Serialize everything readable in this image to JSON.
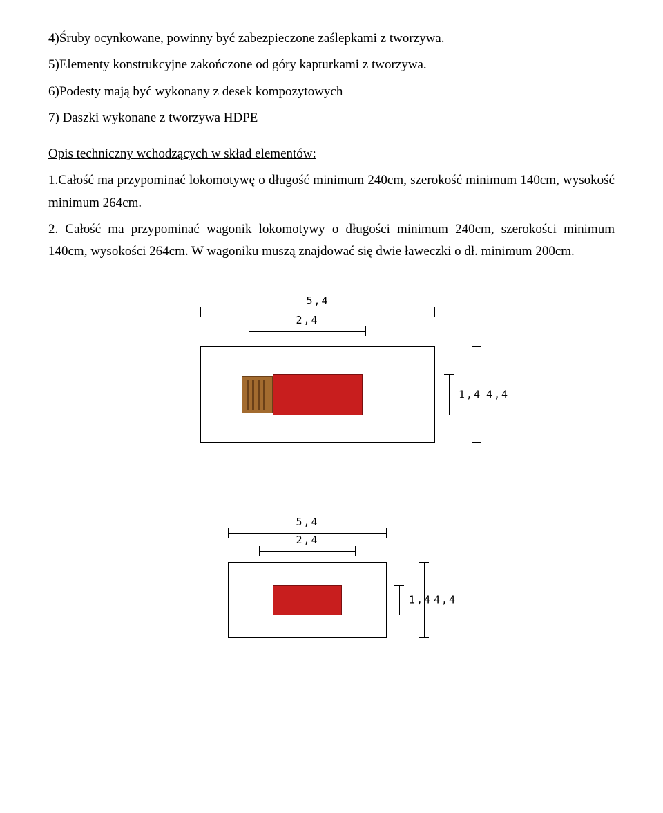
{
  "text": {
    "p4": "4)Śruby ocynkowane, powinny być zabezpieczone zaślepkami z tworzywa.",
    "p5": "5)Elementy konstrukcyjne zakończone od góry kapturkami z tworzywa.",
    "p6": "6)Podesty mają być wykonany z desek kompozytowych",
    "p7": "7) Daszki wykonane z tworzywa HDPE",
    "heading": "Opis techniczny wchodzących w skład elementów:",
    "item1": "1.Całość ma przypominać lokomotywę o długość minimum 240cm, szerokość minimum 140cm, wysokość minimum 264cm.",
    "item2": "2. Całość ma przypominać wagonik lokomotywy o długości minimum 240cm, szerokości minimum 140cm, wysokości 264cm. W wagoniku muszą znajdować się dwie ławeczki o dł. minimum 200cm."
  },
  "diagram1": {
    "type": "plan-view",
    "outer_width_label": "5,4",
    "inner_width_label": "2,4",
    "inner_height_label": "1,4",
    "outer_height_label": "4,4",
    "colors": {
      "box_border": "#000000",
      "loco_body": "#c81e1e",
      "loco_cab": "#a36b2f",
      "background": "#ffffff"
    }
  },
  "diagram2": {
    "type": "plan-view",
    "outer_width_label": "5,4",
    "inner_width_label": "2,4",
    "inner_height_label": "1,4",
    "outer_height_label": "4,4",
    "colors": {
      "box_border": "#000000",
      "wagon_body": "#c81e1e",
      "background": "#ffffff"
    }
  }
}
